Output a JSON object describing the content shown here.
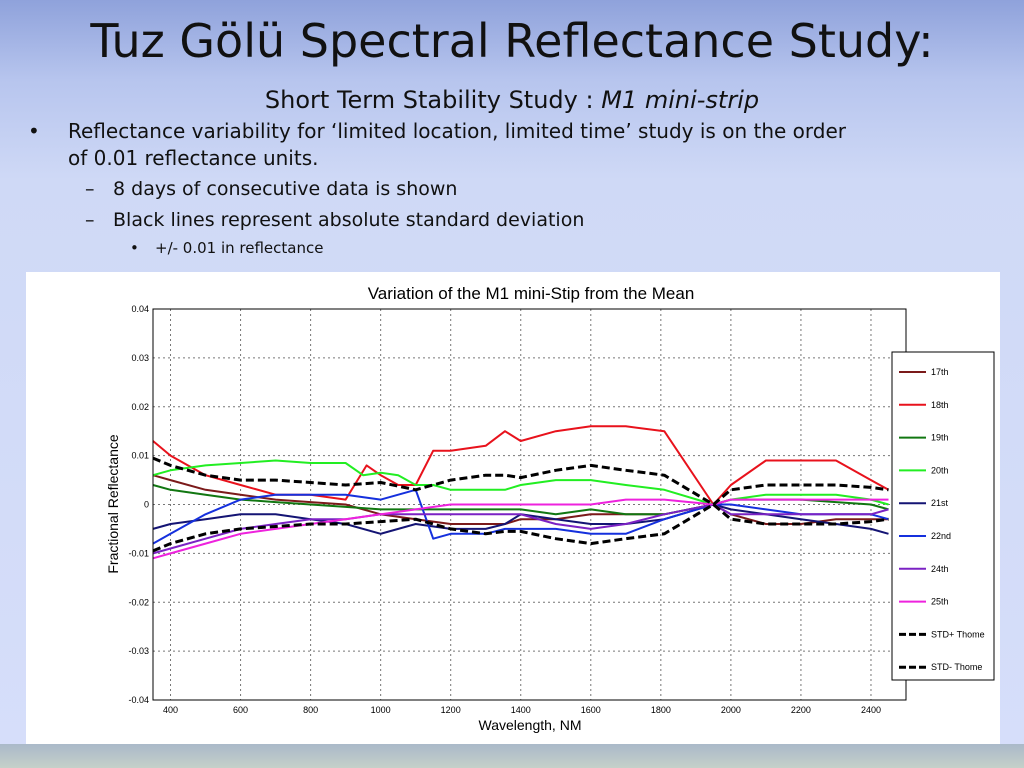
{
  "slide": {
    "title": "Tuz Gölü Spectral Reflectance Study:",
    "subtitle_plain": "Short Term Stability Study : ",
    "subtitle_italic": "M1 mini-strip",
    "bullet_mark_1": "•",
    "bullet_mark_2": "–",
    "bullet_mark_3": "•",
    "bullet_1": "Reflectance variability for ‘limited location, limited time’ study is on the order of 0.01 reflectance units.",
    "bullet_1_1": "8 days of consecutive data is shown",
    "bullet_1_2": "Black lines represent absolute standard deviation",
    "bullet_1_2_1": "+/- 0.01 in reflectance"
  },
  "chart_data": {
    "type": "line",
    "title": "Variation of the M1 mini-Stip from the Mean",
    "xlabel": "Wavelength, NM",
    "ylabel": "Fractional Reflectance",
    "xlim": [
      350,
      2500
    ],
    "ylim": [
      -0.04,
      0.04
    ],
    "xticks": [
      400,
      600,
      800,
      1000,
      1200,
      1400,
      1600,
      1800,
      2000,
      2200,
      2400
    ],
    "yticks": [
      0.04,
      0.03,
      0.02,
      0.01,
      0,
      -0.01,
      -0.02,
      -0.03,
      -0.04
    ],
    "yticklabels": [
      "0.04",
      "0.03",
      "0.02",
      "0.01",
      "0",
      "-0.01",
      "-0.02",
      "-0.03",
      "-0.04"
    ],
    "grid": true,
    "legend_position": "right",
    "gap_ranges": [
      [
        1355,
        1400
      ],
      [
        1810,
        1950
      ]
    ],
    "series": [
      {
        "name": "17th",
        "color": "#7b1a1a",
        "dashed": false,
        "x": [
          350,
          400,
          500,
          600,
          700,
          800,
          900,
          1000,
          1100,
          1200,
          1300,
          1355,
          1400,
          1500,
          1600,
          1700,
          1810,
          1950,
          2000,
          2100,
          2200,
          2300,
          2400,
          2450
        ],
        "y": [
          0.006,
          0.005,
          0.003,
          0.002,
          0.001,
          0.0005,
          0.0,
          -0.002,
          -0.003,
          -0.004,
          -0.004,
          -0.004,
          -0.003,
          -0.003,
          -0.002,
          -0.002,
          -0.002,
          0.0,
          -0.002,
          -0.004,
          -0.004,
          -0.003,
          -0.003,
          -0.003
        ]
      },
      {
        "name": "18th",
        "color": "#e8121c",
        "dashed": false,
        "x": [
          350,
          400,
          500,
          600,
          700,
          800,
          900,
          960,
          1000,
          1050,
          1100,
          1150,
          1200,
          1300,
          1355,
          1400,
          1500,
          1600,
          1700,
          1810,
          1950,
          2000,
          2100,
          2200,
          2300,
          2400,
          2450
        ],
        "y": [
          0.013,
          0.01,
          0.006,
          0.004,
          0.002,
          0.002,
          0.001,
          0.008,
          0.006,
          0.004,
          0.004,
          0.011,
          0.011,
          0.012,
          0.015,
          0.013,
          0.015,
          0.016,
          0.016,
          0.015,
          0.0,
          0.004,
          0.009,
          0.009,
          0.009,
          0.005,
          0.003
        ]
      },
      {
        "name": "19th",
        "color": "#117711",
        "dashed": false,
        "x": [
          350,
          400,
          500,
          600,
          700,
          800,
          900,
          1000,
          1100,
          1200,
          1300,
          1355,
          1400,
          1500,
          1600,
          1700,
          1810,
          1950,
          2000,
          2100,
          2200,
          2300,
          2400,
          2450
        ],
        "y": [
          0.004,
          0.003,
          0.002,
          0.001,
          0.0005,
          0.0,
          -0.0005,
          -0.001,
          -0.001,
          -0.001,
          -0.001,
          -0.001,
          -0.001,
          -0.002,
          -0.001,
          -0.002,
          -0.002,
          0.0,
          0.001,
          0.001,
          0.001,
          0.0005,
          0.0,
          -0.001
        ]
      },
      {
        "name": "20th",
        "color": "#22ee22",
        "dashed": false,
        "x": [
          350,
          400,
          500,
          600,
          700,
          800,
          900,
          950,
          1000,
          1050,
          1100,
          1150,
          1200,
          1300,
          1355,
          1400,
          1500,
          1600,
          1700,
          1810,
          1950,
          2000,
          2100,
          2200,
          2300,
          2400,
          2450
        ],
        "y": [
          0.006,
          0.007,
          0.008,
          0.0085,
          0.009,
          0.0085,
          0.0085,
          0.006,
          0.0065,
          0.006,
          0.004,
          0.004,
          0.003,
          0.003,
          0.003,
          0.004,
          0.005,
          0.005,
          0.004,
          0.003,
          0.0,
          0.001,
          0.002,
          0.002,
          0.002,
          0.001,
          0.0
        ]
      },
      {
        "name": "21st",
        "color": "#141474",
        "dashed": false,
        "x": [
          350,
          400,
          500,
          600,
          700,
          800,
          900,
          1000,
          1100,
          1200,
          1300,
          1355,
          1400,
          1500,
          1600,
          1700,
          1810,
          1950,
          2000,
          2100,
          2200,
          2300,
          2400,
          2450
        ],
        "y": [
          -0.005,
          -0.004,
          -0.003,
          -0.002,
          -0.002,
          -0.003,
          -0.004,
          -0.006,
          -0.004,
          -0.005,
          -0.005,
          -0.004,
          -0.002,
          -0.003,
          -0.004,
          -0.004,
          -0.003,
          0.0,
          -0.001,
          -0.002,
          -0.003,
          -0.004,
          -0.005,
          -0.006
        ]
      },
      {
        "name": "22nd",
        "color": "#1530dd",
        "dashed": false,
        "x": [
          350,
          400,
          500,
          600,
          700,
          800,
          900,
          1000,
          1100,
          1150,
          1200,
          1300,
          1355,
          1400,
          1500,
          1600,
          1700,
          1810,
          1950,
          2000,
          2100,
          2200,
          2300,
          2400,
          2450
        ],
        "y": [
          -0.008,
          -0.006,
          -0.002,
          0.001,
          0.002,
          0.002,
          0.002,
          0.001,
          0.003,
          -0.007,
          -0.006,
          -0.006,
          -0.005,
          -0.005,
          -0.005,
          -0.006,
          -0.006,
          -0.003,
          0.0,
          0.0,
          -0.001,
          -0.002,
          -0.002,
          -0.002,
          -0.003
        ]
      },
      {
        "name": "24th",
        "color": "#7b22c4",
        "dashed": false,
        "x": [
          350,
          400,
          500,
          600,
          700,
          800,
          900,
          1000,
          1100,
          1200,
          1300,
          1355,
          1400,
          1500,
          1600,
          1700,
          1810,
          1950,
          2000,
          2100,
          2200,
          2300,
          2400,
          2450
        ],
        "y": [
          -0.01,
          -0.009,
          -0.007,
          -0.005,
          -0.004,
          -0.003,
          -0.003,
          -0.002,
          -0.002,
          -0.002,
          -0.002,
          -0.002,
          -0.002,
          -0.004,
          -0.005,
          -0.004,
          -0.002,
          0.0,
          -0.002,
          -0.002,
          -0.002,
          -0.002,
          -0.002,
          -0.001
        ]
      },
      {
        "name": "25th",
        "color": "#ee22dd",
        "dashed": false,
        "x": [
          350,
          400,
          500,
          600,
          700,
          800,
          900,
          1000,
          1100,
          1200,
          1300,
          1355,
          1400,
          1500,
          1600,
          1700,
          1810,
          1950,
          2000,
          2100,
          2200,
          2300,
          2400,
          2450
        ],
        "y": [
          -0.011,
          -0.01,
          -0.008,
          -0.006,
          -0.005,
          -0.004,
          -0.003,
          -0.002,
          -0.001,
          0.0,
          0.0,
          0.0,
          0.0,
          0.0,
          0.0,
          0.001,
          0.001,
          0.0,
          0.001,
          0.001,
          0.001,
          0.001,
          0.001,
          0.001
        ]
      },
      {
        "name": "STD+ Thome",
        "color": "#000000",
        "dashed": true,
        "x": [
          350,
          400,
          500,
          600,
          700,
          800,
          900,
          1000,
          1100,
          1200,
          1300,
          1355,
          1400,
          1500,
          1600,
          1700,
          1810,
          1950,
          2000,
          2100,
          2200,
          2300,
          2400,
          2450
        ],
        "y": [
          0.0095,
          0.008,
          0.006,
          0.005,
          0.005,
          0.0045,
          0.004,
          0.0045,
          0.003,
          0.005,
          0.006,
          0.006,
          0.0055,
          0.007,
          0.008,
          0.007,
          0.006,
          0.0,
          0.003,
          0.004,
          0.004,
          0.004,
          0.0035,
          0.003
        ]
      },
      {
        "name": "STD- Thome",
        "color": "#000000",
        "dashed": true,
        "x": [
          350,
          400,
          500,
          600,
          700,
          800,
          900,
          1000,
          1100,
          1200,
          1300,
          1355,
          1400,
          1500,
          1600,
          1700,
          1810,
          1950,
          2000,
          2100,
          2200,
          2300,
          2400,
          2450
        ],
        "y": [
          -0.0095,
          -0.008,
          -0.006,
          -0.005,
          -0.0045,
          -0.004,
          -0.004,
          -0.0035,
          -0.003,
          -0.005,
          -0.006,
          -0.0055,
          -0.0055,
          -0.007,
          -0.008,
          -0.007,
          -0.006,
          0.0,
          -0.003,
          -0.004,
          -0.004,
          -0.004,
          -0.0035,
          -0.003
        ]
      }
    ]
  }
}
